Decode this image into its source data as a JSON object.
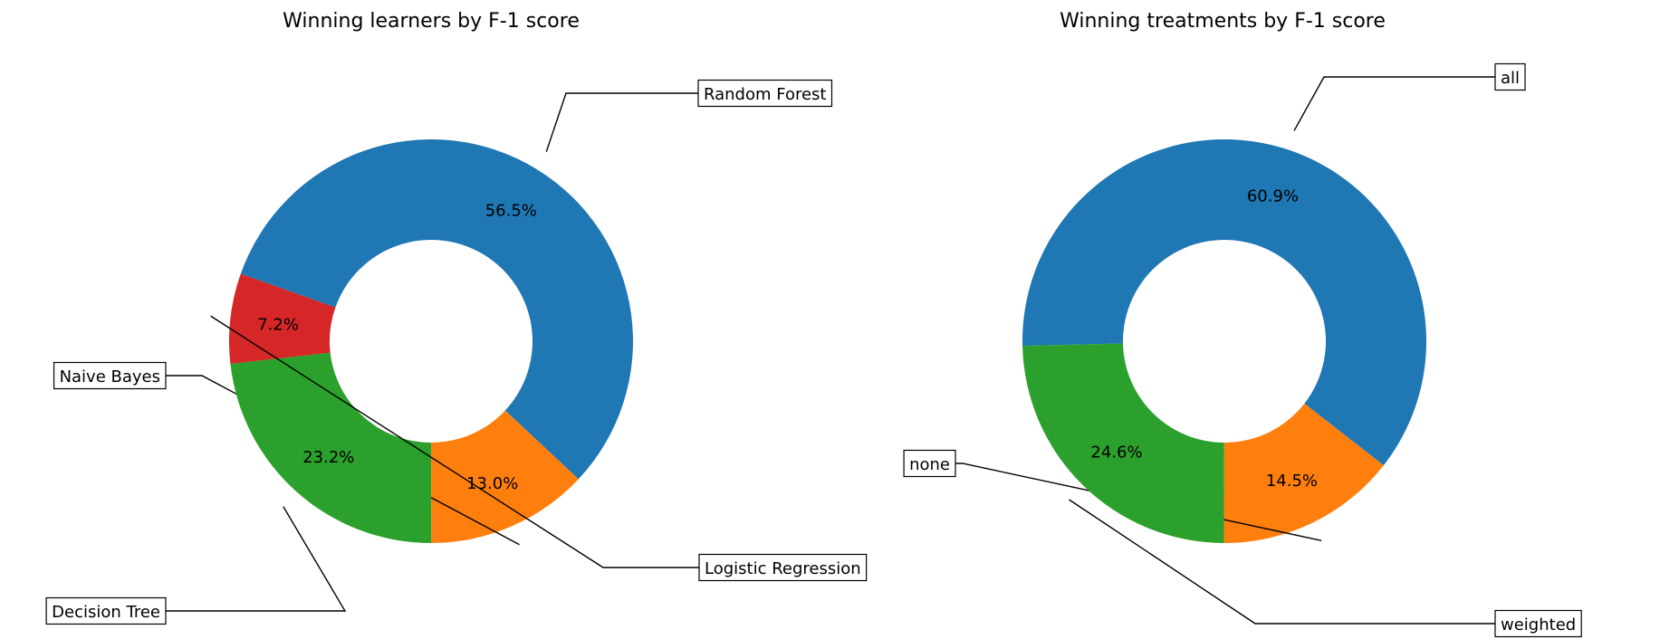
{
  "chart_data": [
    {
      "type": "pie",
      "donut": true,
      "title": "Winning learners by F-1 score",
      "slices": [
        {
          "label": "Random Forest",
          "value": 56.5,
          "pct_label": "56.5%",
          "color": "#1f77b4"
        },
        {
          "label": "Naive Bayes",
          "value": 13.0,
          "pct_label": "13.0%",
          "color": "#ff7f0e"
        },
        {
          "label": "Decision Tree",
          "value": 23.2,
          "pct_label": "23.2%",
          "color": "#2ca02c"
        },
        {
          "label": "Logistic Regression",
          "value": 7.2,
          "pct_label": "7.2%",
          "color": "#d62728"
        }
      ]
    },
    {
      "type": "pie",
      "donut": true,
      "title": "Winning treatments by F-1 score",
      "slices": [
        {
          "label": "all",
          "value": 60.9,
          "pct_label": "60.9%",
          "color": "#1f77b4"
        },
        {
          "label": "none",
          "value": 14.5,
          "pct_label": "14.5%",
          "color": "#ff7f0e"
        },
        {
          "label": "weighted",
          "value": 24.6,
          "pct_label": "24.6%",
          "color": "#2ca02c"
        }
      ]
    }
  ]
}
